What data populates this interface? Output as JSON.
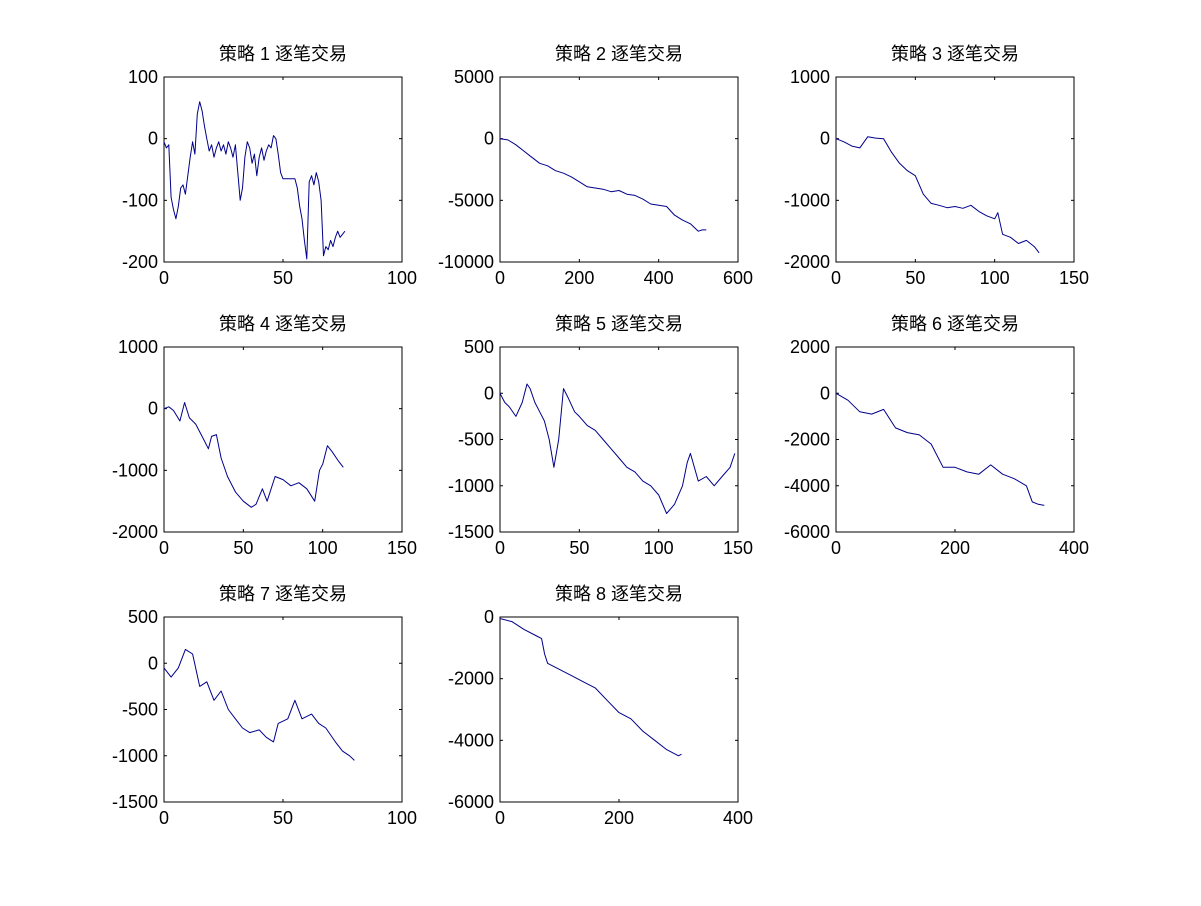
{
  "chart_data": [
    {
      "type": "line",
      "title": "策略 1 逐笔交易",
      "xlim": [
        0,
        100
      ],
      "ylim": [
        -200,
        100
      ],
      "xticks": [
        "0",
        "50",
        "100"
      ],
      "yticks": [
        "100",
        "0",
        "-100",
        "-200"
      ],
      "series": [
        {
          "color": "#00008b",
          "x": [
            0,
            1,
            2,
            3,
            4,
            5,
            6,
            7,
            8,
            9,
            10,
            11,
            12,
            13,
            14,
            15,
            16,
            17,
            18,
            19,
            20,
            21,
            22,
            23,
            24,
            25,
            26,
            27,
            28,
            29,
            30,
            31,
            32,
            33,
            34,
            35,
            36,
            37,
            38,
            39,
            40,
            41,
            42,
            43,
            44,
            45,
            46,
            47,
            48,
            49,
            50,
            51,
            52,
            53,
            54,
            55,
            56,
            57,
            58,
            59,
            60,
            61,
            62,
            63,
            64,
            65,
            66,
            67,
            68,
            69,
            70,
            71,
            72,
            73,
            74,
            75,
            76
          ],
          "y": [
            -5,
            -15,
            -10,
            -95,
            -115,
            -130,
            -110,
            -80,
            -75,
            -90,
            -60,
            -30,
            -5,
            -25,
            40,
            60,
            45,
            20,
            0,
            -20,
            -10,
            -30,
            -15,
            -5,
            -20,
            -10,
            -25,
            -5,
            -15,
            -30,
            -10,
            -55,
            -100,
            -80,
            -30,
            -5,
            -15,
            -40,
            -25,
            -60,
            -30,
            -15,
            -35,
            -20,
            -10,
            -15,
            5,
            0,
            -25,
            -55,
            -65,
            -65,
            -65,
            -65,
            -65,
            -65,
            -80,
            -110,
            -130,
            -165,
            -195,
            -70,
            -60,
            -75,
            -55,
            -70,
            -100,
            -190,
            -175,
            -180,
            -165,
            -175,
            -160,
            -150,
            -160,
            -155,
            -150
          ]
        }
      ]
    },
    {
      "type": "line",
      "title": "策略 2 逐笔交易",
      "xlim": [
        0,
        600
      ],
      "ylim": [
        -10000,
        5000
      ],
      "xticks": [
        "0",
        "200",
        "400",
        "600"
      ],
      "yticks": [
        "5000",
        "0",
        "-5000",
        "-10000"
      ],
      "series": [
        {
          "color": "#00008b",
          "x": [
            0,
            20,
            40,
            60,
            80,
            100,
            120,
            140,
            160,
            180,
            200,
            220,
            240,
            260,
            280,
            300,
            320,
            340,
            360,
            380,
            400,
            420,
            440,
            460,
            480,
            500,
            510,
            520
          ],
          "y": [
            0,
            -100,
            -500,
            -1000,
            -1500,
            -2000,
            -2200,
            -2600,
            -2800,
            -3100,
            -3500,
            -3900,
            -4000,
            -4100,
            -4300,
            -4200,
            -4500,
            -4600,
            -4900,
            -5300,
            -5400,
            -5500,
            -6200,
            -6600,
            -6900,
            -7500,
            -7400,
            -7400
          ]
        }
      ]
    },
    {
      "type": "line",
      "title": "策略 3 逐笔交易",
      "xlim": [
        0,
        150
      ],
      "ylim": [
        -2000,
        1000
      ],
      "xticks": [
        "0",
        "50",
        "100",
        "150"
      ],
      "yticks": [
        "1000",
        "0",
        "-1000",
        "-2000"
      ],
      "series": [
        {
          "color": "#00008b",
          "x": [
            0,
            5,
            10,
            15,
            20,
            25,
            30,
            35,
            40,
            45,
            50,
            55,
            60,
            65,
            70,
            75,
            80,
            85,
            90,
            95,
            100,
            102,
            105,
            110,
            115,
            120,
            125,
            128
          ],
          "y": [
            0,
            -50,
            -120,
            -150,
            30,
            10,
            0,
            -220,
            -400,
            -520,
            -600,
            -900,
            -1050,
            -1080,
            -1120,
            -1100,
            -1130,
            -1080,
            -1180,
            -1250,
            -1300,
            -1200,
            -1550,
            -1600,
            -1700,
            -1650,
            -1750,
            -1850
          ]
        }
      ]
    },
    {
      "type": "line",
      "title": "策略 4 逐笔交易",
      "xlim": [
        0,
        150
      ],
      "ylim": [
        -2000,
        1000
      ],
      "xticks": [
        "0",
        "50",
        "100",
        "150"
      ],
      "yticks": [
        "1000",
        "0",
        "-1000",
        "-2000"
      ],
      "series": [
        {
          "color": "#00008b",
          "x": [
            0,
            3,
            6,
            10,
            13,
            16,
            18,
            20,
            25,
            28,
            30,
            33,
            36,
            40,
            45,
            50,
            55,
            58,
            62,
            65,
            70,
            75,
            80,
            85,
            90,
            95,
            98,
            100,
            103,
            106,
            110,
            113
          ],
          "y": [
            0,
            30,
            -30,
            -200,
            100,
            -150,
            -200,
            -250,
            -500,
            -650,
            -450,
            -420,
            -800,
            -1100,
            -1350,
            -1500,
            -1600,
            -1550,
            -1300,
            -1500,
            -1100,
            -1150,
            -1250,
            -1200,
            -1300,
            -1500,
            -1000,
            -900,
            -600,
            -700,
            -850,
            -950
          ]
        }
      ]
    },
    {
      "type": "line",
      "title": "策略 5 逐笔交易",
      "xlim": [
        0,
        150
      ],
      "ylim": [
        -1500,
        500
      ],
      "xticks": [
        "0",
        "50",
        "100",
        "150"
      ],
      "yticks": [
        "500",
        "0",
        "-500",
        "-1000",
        "-1500"
      ],
      "series": [
        {
          "color": "#00008b",
          "x": [
            0,
            3,
            6,
            10,
            14,
            17,
            19,
            22,
            25,
            28,
            31,
            34,
            37,
            40,
            43,
            47,
            50,
            55,
            60,
            65,
            70,
            75,
            80,
            85,
            90,
            95,
            100,
            105,
            110,
            115,
            118,
            120,
            125,
            130,
            135,
            140,
            145,
            148
          ],
          "y": [
            0,
            -100,
            -150,
            -250,
            -100,
            100,
            50,
            -100,
            -200,
            -300,
            -500,
            -800,
            -500,
            50,
            -50,
            -200,
            -250,
            -350,
            -400,
            -500,
            -600,
            -700,
            -800,
            -850,
            -950,
            -1000,
            -1100,
            -1300,
            -1200,
            -1000,
            -750,
            -650,
            -950,
            -900,
            -1000,
            -900,
            -800,
            -650
          ]
        }
      ]
    },
    {
      "type": "line",
      "title": "策略 6 逐笔交易",
      "xlim": [
        0,
        400
      ],
      "ylim": [
        -6000,
        2000
      ],
      "xticks": [
        "0",
        "200",
        "400"
      ],
      "yticks": [
        "2000",
        "0",
        "-2000",
        "-4000",
        "-6000"
      ],
      "series": [
        {
          "color": "#00008b",
          "x": [
            0,
            20,
            40,
            60,
            80,
            100,
            120,
            140,
            160,
            180,
            200,
            220,
            240,
            260,
            280,
            300,
            320,
            330,
            340,
            350
          ],
          "y": [
            0,
            -300,
            -800,
            -900,
            -700,
            -1500,
            -1700,
            -1800,
            -2200,
            -3200,
            -3200,
            -3400,
            -3500,
            -3100,
            -3500,
            -3700,
            -4000,
            -4700,
            -4800,
            -4850
          ]
        }
      ]
    },
    {
      "type": "line",
      "title": "策略 7 逐笔交易",
      "xlim": [
        0,
        100
      ],
      "ylim": [
        -1500,
        500
      ],
      "xticks": [
        "0",
        "50",
        "100"
      ],
      "yticks": [
        "500",
        "0",
        "-500",
        "-1000",
        "-1500"
      ],
      "series": [
        {
          "color": "#00008b",
          "x": [
            0,
            3,
            6,
            9,
            12,
            15,
            18,
            21,
            24,
            27,
            30,
            33,
            36,
            40,
            43,
            46,
            48,
            52,
            55,
            58,
            62,
            65,
            68,
            72,
            75,
            78,
            80
          ],
          "y": [
            -50,
            -150,
            -50,
            150,
            100,
            -250,
            -200,
            -400,
            -300,
            -500,
            -600,
            -700,
            -750,
            -720,
            -800,
            -850,
            -650,
            -600,
            -400,
            -600,
            -550,
            -650,
            -700,
            -850,
            -950,
            -1000,
            -1050
          ]
        }
      ]
    },
    {
      "type": "line",
      "title": "策略 8 逐笔交易",
      "xlim": [
        0,
        400
      ],
      "ylim": [
        -6000,
        0
      ],
      "xticks": [
        "0",
        "200",
        "400"
      ],
      "yticks": [
        "0",
        "-2000",
        "-4000",
        "-6000"
      ],
      "series": [
        {
          "color": "#00008b",
          "x": [
            0,
            20,
            40,
            60,
            70,
            75,
            80,
            100,
            120,
            140,
            160,
            180,
            200,
            220,
            240,
            260,
            280,
            300,
            305
          ],
          "y": [
            -50,
            -150,
            -400,
            -600,
            -700,
            -1200,
            -1500,
            -1700,
            -1900,
            -2100,
            -2300,
            -2700,
            -3100,
            -3300,
            -3700,
            -4000,
            -4300,
            -4500,
            -4450
          ]
        }
      ]
    }
  ]
}
